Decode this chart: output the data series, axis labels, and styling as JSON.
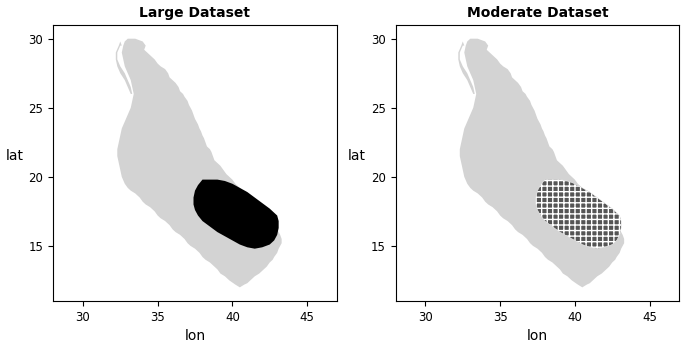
{
  "title_left": "Large Dataset",
  "title_right": "Moderate Dataset",
  "xlabel": "lon",
  "ylabel": "lat",
  "xlim": [
    28,
    47
  ],
  "ylim": [
    11,
    31
  ],
  "xticks": [
    30,
    35,
    40,
    45
  ],
  "yticks": [
    15,
    20,
    25,
    30
  ],
  "background_color": "#ffffff",
  "land_color": "#d3d3d3",
  "highlight_color_left": "#000000",
  "red_sea_body": [
    [
      33.5,
      30.0
    ],
    [
      34.0,
      29.8
    ],
    [
      34.2,
      29.5
    ],
    [
      34.1,
      29.2
    ],
    [
      34.3,
      29.0
    ],
    [
      34.5,
      28.8
    ],
    [
      34.8,
      28.5
    ],
    [
      35.0,
      28.2
    ],
    [
      35.2,
      28.0
    ],
    [
      35.5,
      27.8
    ],
    [
      35.7,
      27.5
    ],
    [
      35.8,
      27.2
    ],
    [
      36.0,
      27.0
    ],
    [
      36.2,
      26.8
    ],
    [
      36.4,
      26.5
    ],
    [
      36.5,
      26.2
    ],
    [
      36.7,
      26.0
    ],
    [
      36.8,
      25.8
    ],
    [
      37.0,
      25.5
    ],
    [
      37.1,
      25.2
    ],
    [
      37.2,
      25.0
    ],
    [
      37.3,
      24.8
    ],
    [
      37.4,
      24.5
    ],
    [
      37.5,
      24.2
    ],
    [
      37.6,
      24.0
    ],
    [
      37.7,
      23.8
    ],
    [
      37.8,
      23.5
    ],
    [
      37.9,
      23.3
    ],
    [
      38.0,
      23.0
    ],
    [
      38.1,
      22.8
    ],
    [
      38.2,
      22.5
    ],
    [
      38.3,
      22.2
    ],
    [
      38.5,
      22.0
    ],
    [
      38.6,
      21.8
    ],
    [
      38.7,
      21.5
    ],
    [
      38.8,
      21.2
    ],
    [
      39.0,
      21.0
    ],
    [
      39.2,
      20.8
    ],
    [
      39.4,
      20.5
    ],
    [
      39.6,
      20.2
    ],
    [
      39.8,
      20.0
    ],
    [
      40.0,
      19.8
    ],
    [
      40.2,
      19.5
    ],
    [
      40.5,
      19.2
    ],
    [
      40.7,
      19.0
    ],
    [
      41.0,
      18.8
    ],
    [
      41.2,
      18.5
    ],
    [
      41.5,
      18.2
    ],
    [
      41.7,
      18.0
    ],
    [
      42.0,
      17.8
    ],
    [
      42.2,
      17.5
    ],
    [
      42.4,
      17.2
    ],
    [
      42.5,
      17.0
    ],
    [
      42.7,
      16.8
    ],
    [
      42.8,
      16.5
    ],
    [
      43.0,
      16.2
    ],
    [
      43.1,
      16.0
    ],
    [
      43.2,
      15.8
    ],
    [
      43.3,
      15.5
    ],
    [
      43.3,
      15.2
    ],
    [
      43.2,
      15.0
    ],
    [
      43.1,
      14.8
    ],
    [
      43.0,
      14.5
    ],
    [
      42.8,
      14.2
    ],
    [
      42.7,
      14.0
    ],
    [
      42.5,
      13.8
    ],
    [
      42.3,
      13.5
    ],
    [
      42.0,
      13.2
    ],
    [
      41.8,
      13.0
    ],
    [
      41.5,
      12.8
    ],
    [
      41.2,
      12.5
    ],
    [
      41.0,
      12.3
    ],
    [
      40.8,
      12.2
    ],
    [
      40.5,
      12.0
    ],
    [
      40.2,
      12.2
    ],
    [
      39.8,
      12.5
    ],
    [
      39.5,
      12.8
    ],
    [
      39.2,
      13.0
    ],
    [
      39.0,
      13.3
    ],
    [
      38.8,
      13.5
    ],
    [
      38.5,
      13.8
    ],
    [
      38.2,
      14.0
    ],
    [
      38.0,
      14.2
    ],
    [
      37.8,
      14.5
    ],
    [
      37.5,
      14.8
    ],
    [
      37.2,
      15.0
    ],
    [
      37.0,
      15.2
    ],
    [
      36.8,
      15.5
    ],
    [
      36.5,
      15.8
    ],
    [
      36.2,
      16.0
    ],
    [
      36.0,
      16.2
    ],
    [
      35.8,
      16.5
    ],
    [
      35.5,
      16.8
    ],
    [
      35.2,
      17.0
    ],
    [
      35.0,
      17.2
    ],
    [
      34.8,
      17.5
    ],
    [
      34.5,
      17.8
    ],
    [
      34.2,
      18.0
    ],
    [
      34.0,
      18.2
    ],
    [
      33.8,
      18.5
    ],
    [
      33.5,
      18.8
    ],
    [
      33.2,
      19.0
    ],
    [
      33.0,
      19.2
    ],
    [
      32.8,
      19.5
    ],
    [
      32.6,
      20.0
    ],
    [
      32.5,
      20.5
    ],
    [
      32.4,
      21.0
    ],
    [
      32.3,
      21.5
    ],
    [
      32.3,
      22.0
    ],
    [
      32.4,
      22.5
    ],
    [
      32.5,
      23.0
    ],
    [
      32.6,
      23.5
    ],
    [
      32.8,
      24.0
    ],
    [
      33.0,
      24.5
    ],
    [
      33.2,
      25.0
    ],
    [
      33.3,
      25.5
    ],
    [
      33.4,
      26.0
    ],
    [
      33.3,
      26.5
    ],
    [
      33.2,
      27.0
    ],
    [
      33.0,
      27.5
    ],
    [
      32.8,
      28.0
    ],
    [
      32.7,
      28.5
    ],
    [
      32.6,
      29.0
    ],
    [
      32.7,
      29.5
    ],
    [
      32.8,
      29.8
    ],
    [
      33.0,
      30.0
    ],
    [
      33.2,
      30.0
    ],
    [
      33.5,
      30.0
    ]
  ],
  "gulf_suez": [
    [
      32.5,
      30.0
    ],
    [
      32.4,
      29.8
    ],
    [
      32.5,
      29.5
    ],
    [
      32.6,
      29.0
    ],
    [
      32.8,
      28.5
    ],
    [
      33.0,
      28.0
    ],
    [
      33.2,
      27.5
    ],
    [
      33.5,
      27.0
    ],
    [
      33.3,
      27.0
    ],
    [
      33.0,
      27.5
    ],
    [
      32.8,
      28.0
    ],
    [
      32.6,
      28.5
    ],
    [
      32.5,
      29.0
    ],
    [
      32.5,
      29.5
    ],
    [
      32.5,
      30.0
    ]
  ],
  "gulf_aqaba": [
    [
      34.9,
      29.8
    ],
    [
      35.0,
      29.5
    ],
    [
      35.1,
      29.0
    ],
    [
      35.2,
      28.5
    ],
    [
      35.3,
      28.0
    ],
    [
      35.2,
      28.0
    ],
    [
      35.1,
      28.5
    ],
    [
      35.0,
      29.0
    ],
    [
      34.9,
      29.5
    ],
    [
      34.8,
      29.8
    ],
    [
      34.9,
      29.8
    ]
  ],
  "highlight_pts": [
    [
      38.0,
      19.8
    ],
    [
      38.5,
      19.8
    ],
    [
      39.0,
      19.8
    ],
    [
      39.5,
      19.7
    ],
    [
      40.0,
      19.5
    ],
    [
      40.5,
      19.2
    ],
    [
      41.0,
      18.9
    ],
    [
      41.5,
      18.5
    ],
    [
      42.0,
      18.1
    ],
    [
      42.5,
      17.7
    ],
    [
      43.0,
      17.2
    ],
    [
      43.1,
      16.8
    ],
    [
      43.1,
      16.3
    ],
    [
      43.0,
      15.8
    ],
    [
      42.8,
      15.4
    ],
    [
      42.5,
      15.1
    ],
    [
      42.0,
      14.9
    ],
    [
      41.5,
      14.8
    ],
    [
      41.0,
      14.9
    ],
    [
      40.5,
      15.1
    ],
    [
      40.0,
      15.4
    ],
    [
      39.5,
      15.7
    ],
    [
      39.0,
      16.0
    ],
    [
      38.5,
      16.4
    ],
    [
      38.0,
      16.8
    ],
    [
      37.7,
      17.2
    ],
    [
      37.5,
      17.6
    ],
    [
      37.4,
      18.0
    ],
    [
      37.4,
      18.5
    ],
    [
      37.5,
      19.0
    ],
    [
      37.7,
      19.4
    ],
    [
      38.0,
      19.8
    ]
  ]
}
